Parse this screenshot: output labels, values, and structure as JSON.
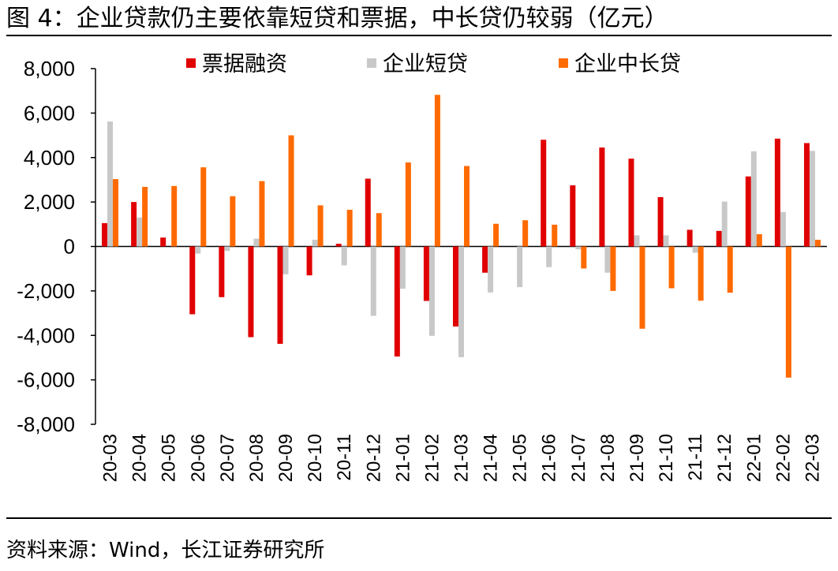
{
  "figure": {
    "title": "图 4：企业贷款仍主要依靠短贷和票据，中长贷仍较弱（亿元）",
    "source": "资料来源：Wind，长江证券研究所"
  },
  "colors": {
    "票据融资": "#e00000",
    "企业短贷": "#c8c8c8",
    "企业中长贷": "#ff6a00"
  },
  "chart_data": {
    "type": "bar",
    "title": "企业贷款仍主要依靠短贷和票据，中长贷仍较弱",
    "unit": "亿元",
    "xlabel": "",
    "ylabel": "",
    "ylim": [
      -8000,
      8000
    ],
    "yticks": [
      8000,
      6000,
      4000,
      2000,
      0,
      -2000,
      -4000,
      -6000,
      -8000
    ],
    "ytick_labels": [
      "8,000",
      "6,000",
      "4,000",
      "2,000",
      "0",
      "-2,000",
      "-4,000",
      "-6,000",
      "-8,000"
    ],
    "legend_position": "top-center",
    "categories": [
      "20-03",
      "20-04",
      "20-05",
      "20-06",
      "20-07",
      "20-08",
      "20-09",
      "20-10",
      "20-11",
      "20-12",
      "21-01",
      "21-02",
      "21-03",
      "21-04",
      "21-05",
      "21-06",
      "21-07",
      "21-08",
      "21-09",
      "21-10",
      "21-11",
      "21-12",
      "22-01",
      "22-02",
      "22-03"
    ],
    "series": [
      {
        "name": "票据融资",
        "values": [
          1050,
          2000,
          400,
          -3050,
          -2280,
          -4080,
          -4380,
          -1300,
          120,
          3050,
          -4950,
          -2450,
          -3600,
          -1180,
          0,
          4800,
          2750,
          4450,
          3950,
          2220,
          750,
          700,
          3150,
          4850,
          4650
        ]
      },
      {
        "name": "企业短贷",
        "values": [
          5620,
          1300,
          0,
          -320,
          -200,
          350,
          -1250,
          300,
          -850,
          -3120,
          -1900,
          -4020,
          -4980,
          -2070,
          -1830,
          -930,
          -130,
          -1180,
          500,
          500,
          -280,
          2020,
          4280,
          1550,
          4300
        ]
      },
      {
        "name": "企业中长贷",
        "values": [
          3030,
          2680,
          2720,
          3560,
          2260,
          2940,
          5000,
          1850,
          1650,
          1500,
          3780,
          6820,
          3620,
          1020,
          1180,
          980,
          -990,
          -2000,
          -3700,
          -1880,
          -2440,
          -2080,
          550,
          -5900,
          300
        ]
      }
    ]
  }
}
